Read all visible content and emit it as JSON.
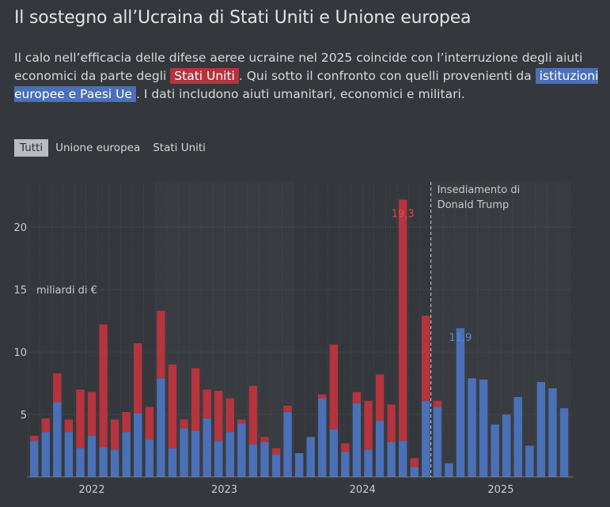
{
  "title": "Il sostegno all’Ucraina di Stati Uniti e Unione europea",
  "subtitle": {
    "part1": "Il calo nell’efficacia delle difese aeree ucraine nel 2025 coincide con l’interruzione degli aiuti economici da parte degli ",
    "us_label": "Stati Uniti",
    "part2": ". Qui sotto il confronto con quelli provenienti da ",
    "eu_label": "istituzioni europee e Paesi Ue",
    "part3": ". I dati includono aiuti umanitari, economici e militari."
  },
  "filters": [
    {
      "label": "Tutti",
      "active": true
    },
    {
      "label": "Unione europea",
      "active": false
    },
    {
      "label": "Stati Uniti",
      "active": false
    }
  ],
  "colors": {
    "eu": "#4a70b7",
    "us": "#b5343e",
    "background": "#34373b",
    "shade": "#3d4044"
  },
  "chart_data": {
    "type": "bar",
    "stacked": true,
    "ylabel": "miliardi di €",
    "ylim": [
      0,
      23
    ],
    "yticks": [
      5,
      10,
      15,
      20
    ],
    "year_labels": [
      "2022",
      "2023",
      "2024",
      "2025"
    ],
    "months": [
      "2022-02",
      "2022-03",
      "2022-04",
      "2022-05",
      "2022-06",
      "2022-07",
      "2022-08",
      "2022-09",
      "2022-10",
      "2022-11",
      "2022-12",
      "2023-01",
      "2023-02",
      "2023-03",
      "2023-04",
      "2023-05",
      "2023-06",
      "2023-07",
      "2023-08",
      "2023-09",
      "2023-10",
      "2023-11",
      "2023-12",
      "2024-01",
      "2024-02",
      "2024-03",
      "2024-04",
      "2024-05",
      "2024-06",
      "2024-07",
      "2024-08",
      "2024-09",
      "2024-10",
      "2024-11",
      "2024-12",
      "2025-01",
      "2025-02",
      "2025-03",
      "2025-04",
      "2025-05",
      "2025-06",
      "2025-07",
      "2025-08",
      "2025-09",
      "2025-10",
      "2025-11",
      "2025-12"
    ],
    "series": [
      {
        "name": "Unione europea",
        "values": [
          2.9,
          3.6,
          6.0,
          3.6,
          2.3,
          3.3,
          2.4,
          2.2,
          3.6,
          5.1,
          3.0,
          7.9,
          2.3,
          3.9,
          3.7,
          4.7,
          2.9,
          3.6,
          4.3,
          2.6,
          2.8,
          1.8,
          5.2,
          1.9,
          3.2,
          6.3,
          3.8,
          2.0,
          5.9,
          2.2,
          4.5,
          2.8,
          2.9,
          0.8,
          6.1,
          5.6,
          1.1,
          11.9,
          7.9,
          7.8,
          4.2,
          5.0,
          6.4,
          2.5,
          7.6,
          7.1,
          5.5
        ]
      },
      {
        "name": "Stati Uniti",
        "values": [
          0.4,
          1.1,
          2.3,
          1.0,
          4.7,
          3.5,
          9.8,
          2.4,
          1.6,
          5.6,
          2.6,
          5.4,
          6.7,
          0.7,
          5.0,
          2.3,
          4.0,
          2.7,
          0.3,
          4.7,
          0.4,
          0.5,
          0.5,
          0,
          0,
          0.3,
          6.8,
          0.7,
          0.9,
          3.9,
          3.7,
          3.0,
          19.3,
          0.7,
          6.8,
          0.5,
          0,
          0,
          0,
          0,
          0,
          0,
          0,
          0,
          0,
          0,
          0
        ]
      }
    ],
    "annotations": [
      {
        "text": "19,3",
        "month": "2024-10",
        "series": "Stati Uniti"
      },
      {
        "text": "11,9",
        "month": "2025-03",
        "series": "Unione europea"
      },
      {
        "text_line1": "Insediamento di",
        "text_line2": "Donald Trump",
        "month": "2025-01"
      }
    ],
    "grid": true
  }
}
